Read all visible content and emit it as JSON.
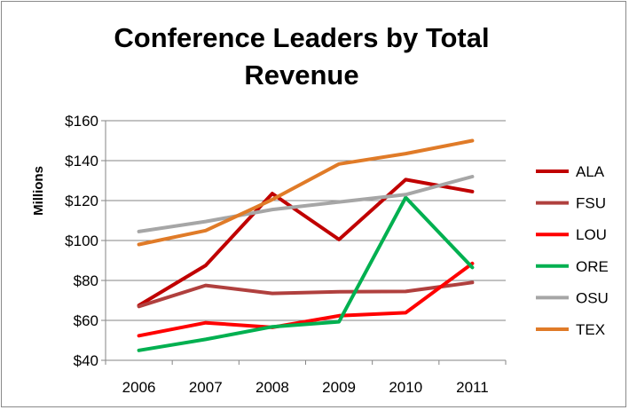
{
  "chart_data": {
    "type": "line",
    "title": "Conference Leaders by Total Revenue",
    "ylabel": "Millions",
    "xlabel": "",
    "x": [
      "2006",
      "2007",
      "2008",
      "2009",
      "2010",
      "2011"
    ],
    "ylim": [
      40,
      160
    ],
    "yticks": [
      40,
      60,
      80,
      100,
      120,
      140,
      160
    ],
    "ytick_labels": [
      "$40",
      "$60",
      "$80",
      "$100",
      "$120",
      "$140",
      "$160"
    ],
    "grid": "horizontal",
    "legend_position": "right",
    "series": [
      {
        "name": "ALA",
        "color": "#C00000",
        "values": [
          67.5,
          87.5,
          123.5,
          100.5,
          130.5,
          124.5
        ]
      },
      {
        "name": "FSU",
        "color": "#B0403E",
        "values": [
          67.0,
          77.5,
          73.5,
          74.3,
          74.5,
          79.0
        ]
      },
      {
        "name": "LOU",
        "color": "#FF0000",
        "values": [
          52.3,
          58.8,
          56.5,
          62.3,
          63.8,
          88.5
        ]
      },
      {
        "name": "ORE",
        "color": "#00B050",
        "values": [
          45.0,
          50.5,
          56.8,
          59.3,
          121.5,
          86.5
        ]
      },
      {
        "name": "OSU",
        "color": "#A6A6A6",
        "values": [
          104.5,
          109.5,
          115.5,
          119.3,
          123.0,
          132.0
        ]
      },
      {
        "name": "TEX",
        "color": "#E07B28",
        "values": [
          98.0,
          105.0,
          120.5,
          138.3,
          143.5,
          150.0
        ]
      }
    ]
  }
}
